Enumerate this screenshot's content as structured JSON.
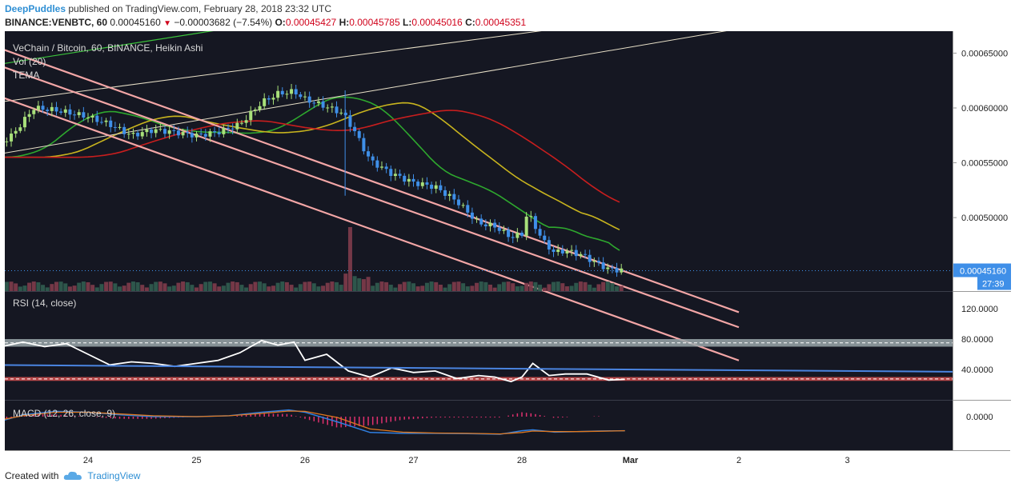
{
  "header": {
    "author": "DeepPuddles",
    "published_text": "published on TradingView.com, February 28, 2018 23:32 UTC",
    "symbol": "BINANCE:VENBTC, 60",
    "last": "0.00045160",
    "change": "−0.00003682 (−7.54%)",
    "open_label": "O:",
    "open": "0.00045427",
    "high_label": "H:",
    "high": "0.00045785",
    "low_label": "L:",
    "low": "0.00045016",
    "close_label": "C:",
    "close": "0.00045351"
  },
  "panels": {
    "main_title": "VeChain / Bitcoin, 60, BINANCE, Heikin Ashi",
    "vol_label": "Vol (20)",
    "tema_label": "TEMA",
    "rsi_label": "RSI (14, close)",
    "macd_label": "MACD (12, 26, close, 9)"
  },
  "price_scale": {
    "ticks": [
      "0.00065000",
      "0.00060000",
      "0.00055000",
      "0.00050000"
    ],
    "last_price_tag": "0.00045160",
    "countdown_tag": "27:39"
  },
  "rsi_scale": {
    "ticks": [
      "120.0000",
      "80.0000",
      "40.0000"
    ]
  },
  "macd_scale": {
    "ticks": [
      "0.0000"
    ]
  },
  "x_axis": {
    "ticks": [
      "24",
      "25",
      "26",
      "27",
      "28",
      "Mar",
      "2",
      "3"
    ]
  },
  "footer": {
    "created_with": "Created with",
    "brand": "TradingView"
  },
  "colors": {
    "background": "#151722",
    "up_candle": "#a8e07a",
    "down_candle": "#3f8fe8",
    "channel": "#f3a6a6",
    "trend_green": "#3cc43c",
    "trend_white": "#e8e0c8",
    "ma_green": "#2ea82e",
    "ma_yellow": "#c8b41e",
    "ma_red": "#c81e1e",
    "rsi_line": "#ffffff",
    "rsi_upper_band": "#9aa7aa",
    "rsi_lower_band": "#c84c4c",
    "rsi_trend": "#4a84e0",
    "macd_line": "#2f7fe0",
    "signal_line": "#e0781e",
    "hist": "#e0306e"
  },
  "chart_data": [
    {
      "type": "candlestick",
      "title": "VeChain / Bitcoin, 60, BINANCE, Heikin Ashi",
      "x_range_days": [
        "Feb 23",
        "Mar 3"
      ],
      "ylim": [
        0.000433,
        0.00067
      ],
      "y_ticks": [
        0.00065,
        0.0006,
        0.00055,
        0.0005
      ],
      "last_price": 0.0004516,
      "series": [
        {
          "name": "Heikin Ashi price path",
          "x": [
            23.0,
            23.3,
            23.5,
            23.7,
            24.0,
            24.2,
            24.4,
            24.6,
            24.8,
            25.0,
            25.2,
            25.4,
            25.6,
            25.75,
            25.9,
            26.0,
            26.2,
            26.35,
            26.45,
            26.6,
            26.8,
            27.0,
            27.2,
            27.4,
            27.6,
            27.75,
            27.9,
            28.0,
            28.05,
            28.2,
            28.3,
            28.4,
            28.55,
            28.7,
            28.8,
            28.95
          ],
          "values": [
            0.000555,
            0.000575,
            0.0006,
            0.000598,
            0.000592,
            0.000585,
            0.000575,
            0.00058,
            0.000578,
            0.000575,
            0.000578,
            0.000585,
            0.000605,
            0.000613,
            0.000615,
            0.000608,
            0.000601,
            0.000595,
            0.00058,
            0.000552,
            0.00054,
            0.000532,
            0.000528,
            0.000515,
            0.000495,
            0.000492,
            0.000482,
            0.000485,
            0.000505,
            0.000478,
            0.000468,
            0.00047,
            0.000466,
            0.000458,
            0.000453,
            0.000452
          ]
        }
      ],
      "trendlines": [
        {
          "name": "green upper",
          "from": [
            23.0,
            0.000637
          ],
          "to": [
            25.0,
            0.000668
          ]
        },
        {
          "name": "beige upper",
          "from": [
            23.0,
            0.000603
          ],
          "to": [
            27.0,
            0.000655
          ]
        },
        {
          "name": "beige lower",
          "from": [
            23.0,
            0.000555
          ],
          "to": [
            27.0,
            0.000622
          ]
        },
        {
          "name": "channel 1",
          "from": [
            23.0,
            0.000661
          ],
          "to": [
            29.2,
            0.000442
          ]
        },
        {
          "name": "channel 2",
          "from": [
            23.0,
            0.000645
          ],
          "to": [
            29.2,
            0.000428
          ]
        },
        {
          "name": "channel 3",
          "from": [
            23.0,
            0.000617
          ],
          "to": [
            29.2,
            0.000398
          ]
        }
      ],
      "volume": {
        "label": "Vol (20)",
        "spike_at": 26.4
      }
    },
    {
      "type": "line",
      "title": "RSI (14, close)",
      "ylim": [
        0,
        140
      ],
      "y_ticks": [
        120,
        80,
        40
      ],
      "bands": {
        "upper": [
          70,
          80
        ],
        "lower": [
          30,
          25
        ]
      },
      "series": [
        {
          "name": "RSI",
          "x": [
            23.0,
            23.2,
            23.4,
            23.6,
            23.8,
            24.0,
            24.2,
            24.4,
            24.6,
            24.8,
            25.0,
            25.2,
            25.4,
            25.6,
            25.75,
            25.9,
            26.0,
            26.2,
            26.4,
            26.6,
            26.8,
            27.0,
            27.2,
            27.4,
            27.6,
            27.75,
            27.9,
            28.0,
            28.1,
            28.25,
            28.4,
            28.6,
            28.8,
            28.95
          ],
          "values": [
            52,
            70,
            76,
            70,
            74,
            60,
            46,
            50,
            48,
            44,
            48,
            52,
            62,
            78,
            72,
            76,
            52,
            60,
            38,
            30,
            42,
            36,
            38,
            28,
            32,
            30,
            24,
            30,
            48,
            32,
            34,
            34,
            26,
            27
          ]
        },
        {
          "name": "RSI trend",
          "x": [
            23.0,
            31.0
          ],
          "values": [
            46,
            38
          ]
        }
      ]
    },
    {
      "type": "line",
      "title": "MACD (12, 26, close, 9)",
      "y_ticks": [
        0
      ],
      "series": [
        {
          "name": "MACD",
          "x": [
            23.0,
            23.4,
            23.7,
            24.0,
            24.3,
            24.6,
            25.0,
            25.3,
            25.6,
            25.85,
            26.0,
            26.3,
            26.6,
            26.9,
            27.2,
            27.5,
            27.8,
            28.0,
            28.1,
            28.3,
            28.5,
            28.7,
            28.95
          ],
          "values": [
            -0.6,
            0.1,
            0.3,
            0.25,
            0.1,
            0.0,
            0.0,
            0.05,
            0.25,
            0.38,
            0.25,
            -0.3,
            -0.9,
            -0.95,
            -0.95,
            -0.97,
            -1.0,
            -0.8,
            -0.75,
            -0.88,
            -0.85,
            -0.82,
            -0.8
          ]
        },
        {
          "name": "Signal",
          "x": [
            23.0,
            23.4,
            23.7,
            24.0,
            24.3,
            24.6,
            25.0,
            25.3,
            25.6,
            25.85,
            26.0,
            26.3,
            26.6,
            26.9,
            27.2,
            27.5,
            27.8,
            28.0,
            28.1,
            28.3,
            28.5,
            28.7,
            28.95
          ],
          "values": [
            -0.4,
            0.05,
            0.25,
            0.25,
            0.15,
            0.05,
            0.0,
            0.05,
            0.18,
            0.32,
            0.3,
            -0.05,
            -0.7,
            -0.88,
            -0.93,
            -0.95,
            -0.98,
            -0.9,
            -0.82,
            -0.85,
            -0.85,
            -0.83,
            -0.8
          ]
        }
      ]
    }
  ]
}
